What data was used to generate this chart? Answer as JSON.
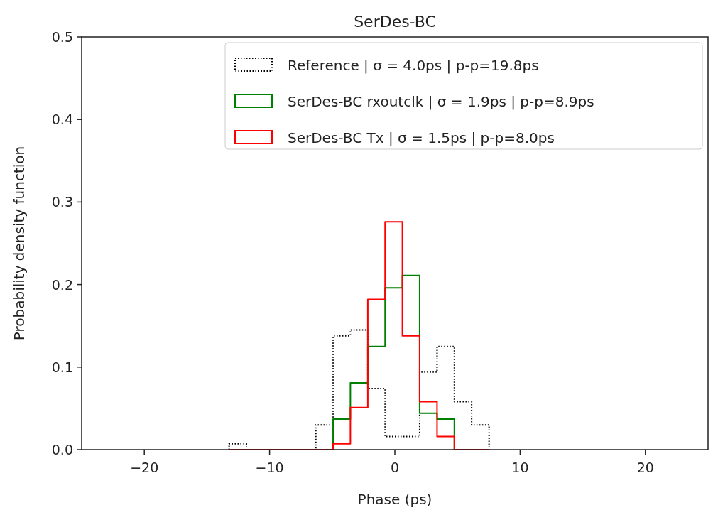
{
  "chart_data": {
    "type": "histogram",
    "title": "SerDes-BC",
    "xlabel": "Phase (ps)",
    "ylabel": "Probability density function",
    "xlim": [
      -25,
      25
    ],
    "ylim": [
      0,
      0.5
    ],
    "xticks": [
      {
        "value": -20,
        "label": "−20"
      },
      {
        "value": -10,
        "label": "−10"
      },
      0,
      10,
      20
    ],
    "yticks": [
      {
        "value": 0,
        "label": "0.0"
      },
      0.1,
      0.2,
      0.3,
      0.4,
      0.5
    ],
    "legend": "top right",
    "bins": [
      -13.23,
      -11.85,
      -10.46,
      -9.08,
      -7.69,
      -6.31,
      -4.93,
      -3.55,
      -2.16,
      -0.78,
      0.6,
      1.98,
      3.37,
      4.75,
      6.13,
      7.52
    ],
    "series": [
      {
        "name": "Reference | σ = 4.0ps | p-p=19.8ps",
        "color": "#000000",
        "line_style": "dotted",
        "values": [
          0.007,
          0,
          0,
          0,
          0,
          0.03,
          0.138,
          0.145,
          0.074,
          0.016,
          0.016,
          0.094,
          0.125,
          0.058,
          0.03
        ]
      },
      {
        "name": "SerDes-BC rxoutclk | σ = 1.9ps | p-p=8.9ps",
        "color": "#008000",
        "line_style": "solid",
        "values": [
          0,
          0,
          0,
          0,
          0,
          0,
          0.037,
          0.081,
          0.125,
          0.196,
          0.211,
          0.044,
          0.037,
          0,
          0
        ]
      },
      {
        "name": "SerDes-BC Tx | σ = 1.5ps | p-p=8.0ps",
        "color": "#ff0000",
        "line_style": "solid",
        "values": [
          0,
          0,
          0,
          0,
          0,
          0,
          0.007,
          0.051,
          0.182,
          0.276,
          0.138,
          0.058,
          0.016,
          0,
          0
        ]
      }
    ]
  }
}
